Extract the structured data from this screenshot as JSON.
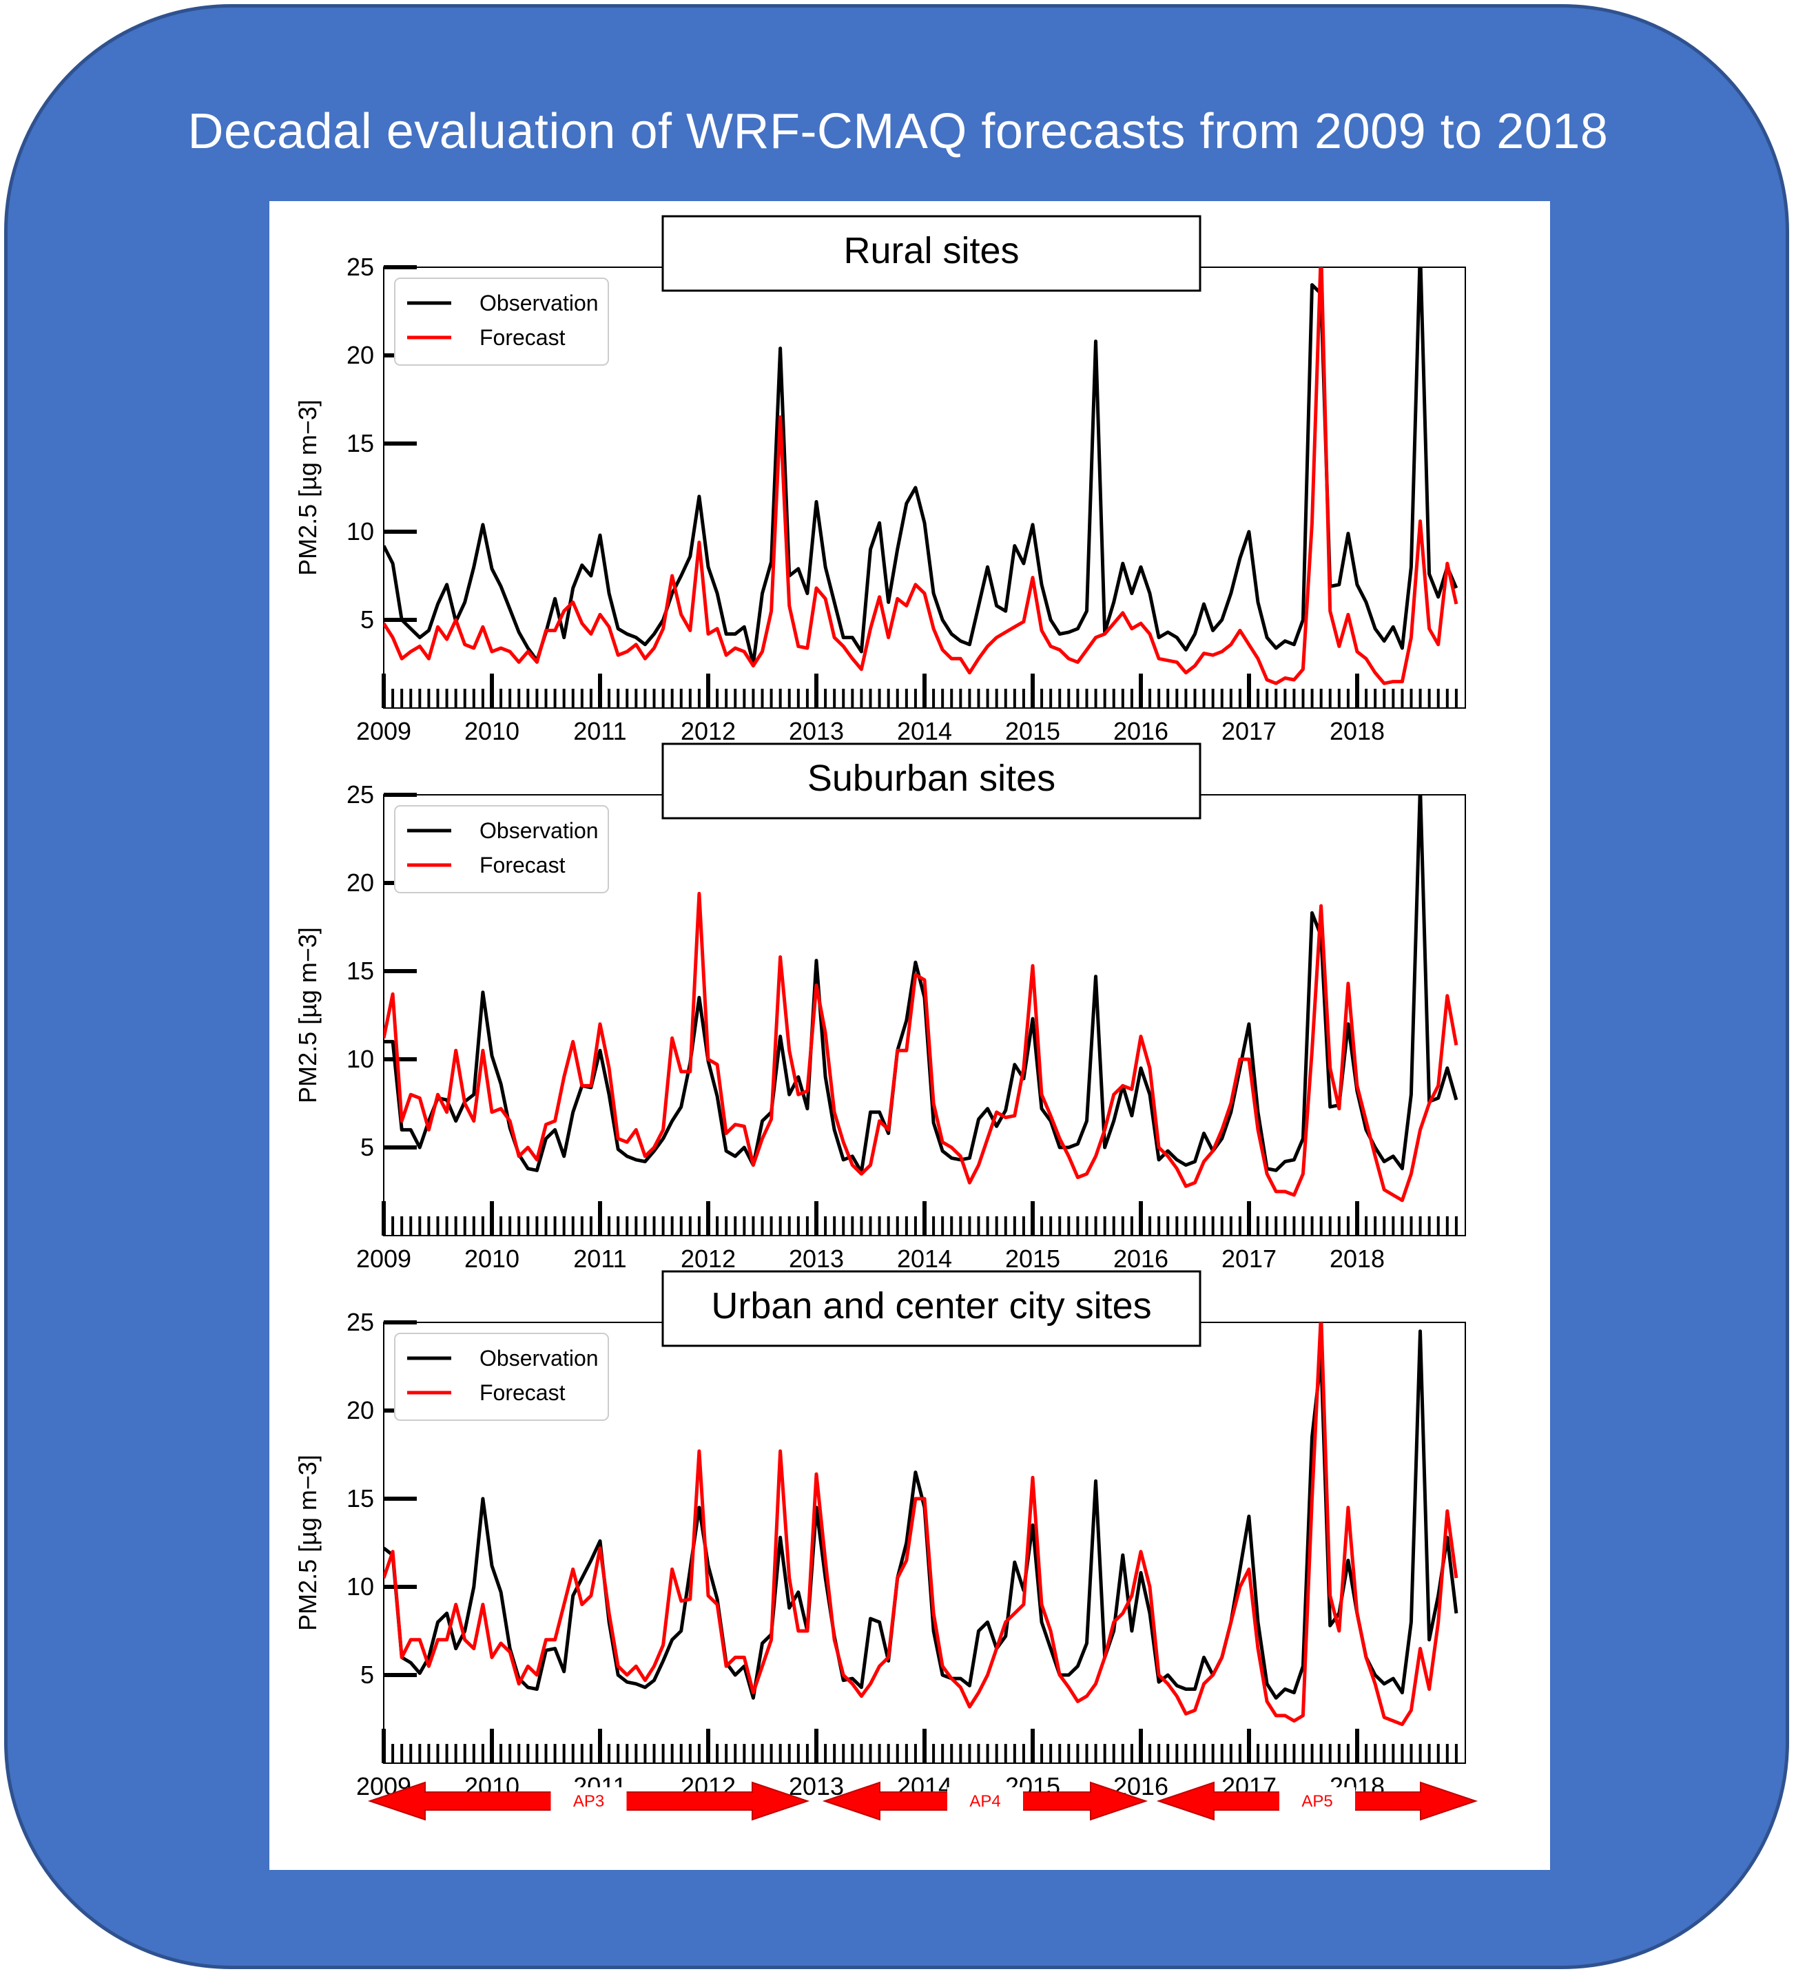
{
  "title": "Decadal evaluation of WRF-CMAQ forecasts from 2009 to 2018",
  "colors": {
    "background": "#4472c4",
    "observation": "#000000",
    "forecast": "#ff0000",
    "arrow_fill": "#ff0000",
    "arrow_stroke": "#c00000"
  },
  "chart_data": [
    {
      "type": "line",
      "title": "Rural sites",
      "xlabel": "",
      "ylabel": "PM2.5 [µg m−3]",
      "ylim": [
        0,
        25
      ],
      "yticks": [
        5,
        10,
        15,
        20,
        25
      ],
      "xlim": [
        2009,
        2019
      ],
      "xticks": [
        "2009",
        "2010",
        "2011",
        "2012",
        "2013",
        "2014",
        "2015",
        "2016",
        "2017",
        "2018"
      ],
      "legend": {
        "position": "top-left",
        "entries": [
          "Observation",
          "Forecast"
        ]
      },
      "x_start": 2009,
      "x_step": 0.08333,
      "series": [
        {
          "name": "Observation",
          "values": [
            9.2,
            8.2,
            5.0,
            4.5,
            4.0,
            4.4,
            5.9,
            7.0,
            4.9,
            6.0,
            8.0,
            10.4,
            7.9,
            6.9,
            5.6,
            4.3,
            3.4,
            2.7,
            4.3,
            6.2,
            4.0,
            6.8,
            8.1,
            7.5,
            9.8,
            6.5,
            4.5,
            4.2,
            4.0,
            3.6,
            4.2,
            5.0,
            6.5,
            7.5,
            8.6,
            12.0,
            8.0,
            6.5,
            4.2,
            4.2,
            4.6,
            2.5,
            6.5,
            8.3,
            20.4,
            7.5,
            7.9,
            6.5,
            11.7,
            8.0,
            6.0,
            4.0,
            4.0,
            3.2,
            9.0,
            10.5,
            6.0,
            9.0,
            11.6,
            12.5,
            10.5,
            6.5,
            5.0,
            4.2,
            3.8,
            3.6,
            5.8,
            8.0,
            5.8,
            5.5,
            9.2,
            8.2,
            10.4,
            7.0,
            5.0,
            4.2,
            4.3,
            4.5,
            5.5,
            20.8,
            4.3,
            6.0,
            8.2,
            6.5,
            8.0,
            6.5,
            4.0,
            4.3,
            4.0,
            3.3,
            4.2,
            5.9,
            4.4,
            5.0,
            6.5,
            8.5,
            10.0,
            6.0,
            4.0,
            3.4,
            3.8,
            3.6,
            5.0,
            24.0,
            23.5,
            6.9,
            7.0,
            9.9,
            7.0,
            6.0,
            4.5,
            3.8,
            4.6,
            3.4,
            8.0,
            26.0,
            7.6,
            6.3,
            8.0,
            6.8
          ]
        },
        {
          "name": "Forecast",
          "values": [
            4.8,
            4.0,
            2.8,
            3.2,
            3.5,
            2.8,
            4.6,
            3.9,
            5.0,
            3.6,
            3.4,
            4.6,
            3.2,
            3.4,
            3.2,
            2.6,
            3.2,
            2.6,
            4.4,
            4.4,
            5.5,
            6.0,
            4.8,
            4.2,
            5.3,
            4.6,
            3.0,
            3.2,
            3.6,
            2.8,
            3.4,
            4.5,
            7.5,
            5.3,
            4.4,
            9.4,
            4.2,
            4.5,
            3.0,
            3.4,
            3.2,
            2.4,
            3.2,
            5.5,
            16.5,
            5.8,
            3.5,
            3.4,
            6.8,
            6.2,
            4.0,
            3.5,
            2.8,
            2.2,
            4.5,
            6.3,
            4.0,
            6.2,
            5.8,
            7.0,
            6.5,
            4.5,
            3.3,
            2.8,
            2.8,
            2.0,
            2.8,
            3.5,
            4.0,
            4.3,
            4.6,
            4.9,
            7.4,
            4.4,
            3.5,
            3.3,
            2.8,
            2.6,
            3.3,
            4.0,
            4.2,
            4.8,
            5.4,
            4.5,
            4.8,
            4.2,
            2.8,
            2.7,
            2.6,
            2.0,
            2.4,
            3.1,
            3.0,
            3.2,
            3.6,
            4.4,
            3.6,
            2.8,
            1.6,
            1.4,
            1.7,
            1.6,
            2.2,
            10.5,
            26.0,
            5.5,
            3.5,
            5.3,
            3.2,
            2.8,
            2.0,
            1.4,
            1.5,
            1.5,
            4.0,
            10.6,
            4.5,
            3.6,
            8.2,
            5.9
          ]
        }
      ]
    },
    {
      "type": "line",
      "title": "Suburban sites",
      "xlabel": "",
      "ylabel": "PM2.5 [µg m−3]",
      "ylim": [
        0,
        25
      ],
      "yticks": [
        5,
        10,
        15,
        20,
        25
      ],
      "xlim": [
        2009,
        2019
      ],
      "xticks": [
        "2009",
        "2010",
        "2011",
        "2012",
        "2013",
        "2014",
        "2015",
        "2016",
        "2017",
        "2018"
      ],
      "legend": {
        "position": "top-left",
        "entries": [
          "Observation",
          "Forecast"
        ]
      },
      "x_start": 2009,
      "x_step": 0.08333,
      "series": [
        {
          "name": "Observation",
          "values": [
            11.0,
            11.0,
            6.0,
            6.0,
            5.0,
            6.5,
            7.8,
            7.7,
            6.5,
            7.6,
            8.0,
            13.8,
            10.2,
            8.6,
            6.1,
            4.6,
            3.8,
            3.7,
            5.5,
            6.0,
            4.5,
            7.0,
            8.5,
            8.4,
            10.5,
            8.0,
            4.9,
            4.5,
            4.3,
            4.2,
            4.8,
            5.5,
            6.5,
            7.3,
            9.8,
            13.5,
            9.9,
            7.9,
            4.8,
            4.5,
            5.0,
            4.0,
            6.5,
            7.0,
            11.3,
            8.0,
            9.0,
            7.2,
            15.6,
            9.0,
            6.0,
            4.3,
            4.5,
            3.6,
            7.0,
            7.0,
            5.8,
            10.5,
            12.2,
            15.5,
            13.5,
            6.4,
            4.8,
            4.4,
            4.3,
            4.4,
            6.6,
            7.2,
            6.2,
            7.1,
            9.7,
            8.9,
            12.3,
            7.2,
            6.5,
            5.0,
            5.0,
            5.2,
            6.5,
            14.7,
            5.0,
            6.5,
            8.5,
            6.8,
            9.5,
            8.0,
            4.3,
            4.8,
            4.3,
            4.0,
            4.2,
            5.8,
            4.8,
            5.5,
            7.0,
            9.5,
            12.0,
            7.0,
            3.8,
            3.7,
            4.2,
            4.3,
            5.5,
            18.3,
            17.0,
            7.3,
            7.4,
            12.0,
            8.2,
            6.0,
            5.0,
            4.2,
            4.5,
            3.8,
            8.0,
            25.5,
            7.6,
            7.8,
            9.5,
            7.7
          ]
        },
        {
          "name": "Forecast",
          "values": [
            11.2,
            13.7,
            6.5,
            8.0,
            7.8,
            6.0,
            8.0,
            7.0,
            10.5,
            7.5,
            6.5,
            10.5,
            7.0,
            7.2,
            6.5,
            4.5,
            5.0,
            4.3,
            6.3,
            6.5,
            9.0,
            11.0,
            8.5,
            8.5,
            12.0,
            9.5,
            5.5,
            5.3,
            6.0,
            4.5,
            5.0,
            6.0,
            11.2,
            9.3,
            9.3,
            19.4,
            10.0,
            9.7,
            5.8,
            6.3,
            6.2,
            4.0,
            5.5,
            6.6,
            15.8,
            10.5,
            8.0,
            8.2,
            14.2,
            11.5,
            7.0,
            5.3,
            4.0,
            3.5,
            4.0,
            6.5,
            6.0,
            10.5,
            10.5,
            14.8,
            14.5,
            7.5,
            5.3,
            5.0,
            4.5,
            3.0,
            4.0,
            5.5,
            7.0,
            6.7,
            6.8,
            9.5,
            15.3,
            8.0,
            6.8,
            5.5,
            4.5,
            3.3,
            3.5,
            4.5,
            6.0,
            8.0,
            8.5,
            8.3,
            11.3,
            9.5,
            5.0,
            4.5,
            3.8,
            2.8,
            3.0,
            4.2,
            4.8,
            6.0,
            7.5,
            10.0,
            10.0,
            6.0,
            3.5,
            2.5,
            2.5,
            2.3,
            3.5,
            10.5,
            18.7,
            9.5,
            7.2,
            14.3,
            8.5,
            6.5,
            4.5,
            2.6,
            2.3,
            2.0,
            3.5,
            6.0,
            7.5,
            8.5,
            13.6,
            10.8
          ]
        }
      ]
    },
    {
      "type": "line",
      "title": "Urban and center city sites",
      "xlabel": "",
      "ylabel": "PM2.5 [µg m−3]",
      "ylim": [
        0,
        25
      ],
      "yticks": [
        5,
        10,
        15,
        20,
        25
      ],
      "xlim": [
        2009,
        2019
      ],
      "xticks": [
        "2009",
        "2010",
        "2011",
        "2012",
        "2013",
        "2014",
        "2015",
        "2016",
        "2017",
        "2018"
      ],
      "legend": {
        "position": "top-left",
        "entries": [
          "Observation",
          "Forecast"
        ]
      },
      "x_start": 2009,
      "x_step": 0.08333,
      "series": [
        {
          "name": "Observation",
          "values": [
            12.2,
            11.8,
            6.0,
            5.7,
            5.1,
            6.0,
            8.0,
            8.5,
            6.5,
            7.5,
            10.0,
            15.0,
            11.2,
            9.7,
            6.5,
            4.8,
            4.3,
            4.2,
            6.4,
            6.5,
            5.2,
            9.5,
            10.5,
            11.5,
            12.6,
            8.0,
            5.0,
            4.6,
            4.5,
            4.3,
            4.7,
            5.8,
            7.0,
            7.5,
            11.0,
            14.5,
            11.2,
            9.3,
            5.7,
            5.0,
            5.5,
            3.7,
            6.8,
            7.3,
            12.8,
            8.8,
            9.7,
            7.5,
            14.5,
            10.5,
            7.2,
            4.7,
            4.8,
            4.3,
            8.2,
            8.0,
            5.8,
            10.5,
            12.5,
            16.5,
            14.5,
            7.5,
            5.0,
            4.8,
            4.8,
            4.4,
            7.5,
            8.0,
            6.5,
            7.2,
            11.4,
            9.8,
            13.5,
            8.0,
            6.5,
            5.0,
            5.0,
            5.5,
            6.8,
            16.0,
            6.0,
            7.5,
            11.8,
            7.5,
            10.8,
            8.5,
            4.6,
            5.0,
            4.4,
            4.2,
            4.2,
            6.0,
            5.0,
            6.0,
            8.0,
            11.0,
            14.0,
            8.0,
            4.5,
            3.7,
            4.2,
            4.0,
            5.5,
            18.5,
            23.0,
            7.8,
            8.5,
            11.5,
            8.5,
            6.0,
            5.0,
            4.5,
            4.8,
            4.0,
            8.0,
            24.5,
            7.0,
            9.5,
            12.8,
            8.5
          ]
        },
        {
          "name": "Forecast",
          "values": [
            10.5,
            12.0,
            6.0,
            7.0,
            7.0,
            5.5,
            7.0,
            7.0,
            9.0,
            7.0,
            6.5,
            9.0,
            6.0,
            6.8,
            6.3,
            4.5,
            5.5,
            5.0,
            7.0,
            7.0,
            9.0,
            11.0,
            9.0,
            9.5,
            12.2,
            8.5,
            5.5,
            5.0,
            5.5,
            4.7,
            5.5,
            6.7,
            11.0,
            9.2,
            9.3,
            17.7,
            9.5,
            9.0,
            5.5,
            6.0,
            6.0,
            4.0,
            5.5,
            7.0,
            17.7,
            10.5,
            7.5,
            7.5,
            16.4,
            11.5,
            7.0,
            5.0,
            4.5,
            3.8,
            4.5,
            5.5,
            6.0,
            10.5,
            11.5,
            15.0,
            15.0,
            8.5,
            5.5,
            4.8,
            4.3,
            3.2,
            4.0,
            5.0,
            6.5,
            8.0,
            8.5,
            9.0,
            16.2,
            9.0,
            7.5,
            5.0,
            4.3,
            3.5,
            3.8,
            4.5,
            6.0,
            8.0,
            8.5,
            9.5,
            12.0,
            10.0,
            5.0,
            4.5,
            3.8,
            2.8,
            3.0,
            4.5,
            5.0,
            6.0,
            8.0,
            10.0,
            11.0,
            6.5,
            3.5,
            2.7,
            2.7,
            2.4,
            2.7,
            15.0,
            25.5,
            9.5,
            7.5,
            14.5,
            8.5,
            6.0,
            4.5,
            2.6,
            2.4,
            2.2,
            3.0,
            6.5,
            4.2,
            8.0,
            14.3,
            10.5
          ]
        }
      ]
    }
  ],
  "arrows": [
    {
      "label": "AP3"
    },
    {
      "label": "AP4"
    },
    {
      "label": "AP5"
    }
  ]
}
